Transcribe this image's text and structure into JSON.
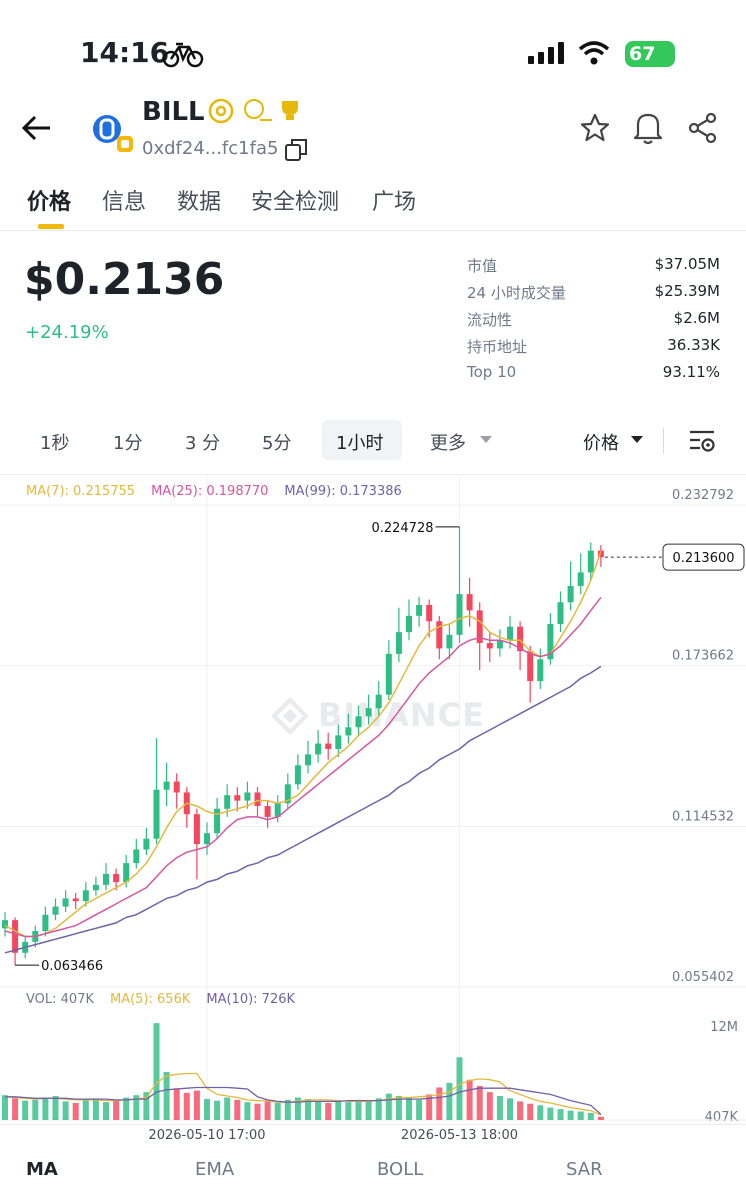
{
  "status_bar": {
    "time": "14:16",
    "battery": "67"
  },
  "header": {
    "symbol": "BILL",
    "address": "0xdf24...fc1fa5"
  },
  "tabs": [
    "价格",
    "信息",
    "数据",
    "安全检测",
    "广场"
  ],
  "price": {
    "value": "$0.2136",
    "change": "+24.19%"
  },
  "stats": [
    {
      "label": "市值",
      "value": "$37.05M"
    },
    {
      "label": "24 小时成交量",
      "value": "$25.39M"
    },
    {
      "label": "流动性",
      "value": "$2.6M"
    },
    {
      "label": "持币地址",
      "value": "36.33K"
    },
    {
      "label": "Top 10",
      "value": "93.11%"
    }
  ],
  "intervals": [
    "1秒",
    "1分",
    "3 分",
    "5分",
    "1小时",
    "更多"
  ],
  "price_menu": "价格",
  "watermark": "BINANCE",
  "indicator_tabs": [
    "MA",
    "EMA",
    "BOLL",
    "SAR"
  ],
  "chart_data": {
    "type": "candlestick",
    "up_color": "#2ebd85",
    "down_color": "#f6465d",
    "categories": [
      null,
      null,
      null,
      null,
      null,
      null,
      null,
      null,
      null,
      null,
      null,
      null,
      null,
      null,
      null,
      null,
      null,
      null,
      null,
      null,
      "2026-05-10 17:00",
      null,
      null,
      null,
      null,
      null,
      null,
      null,
      null,
      null,
      null,
      null,
      null,
      null,
      null,
      null,
      null,
      null,
      null,
      null,
      null,
      null,
      null,
      null,
      null,
      "2026-05-13 18:00",
      null,
      null,
      null,
      null,
      null,
      null,
      null,
      null,
      null,
      null,
      null,
      null,
      null,
      null
    ],
    "open": [
      0.077,
      0.08,
      0.068,
      0.072,
      0.076,
      0.082,
      0.085,
      0.088,
      0.087,
      0.091,
      0.093,
      0.097,
      0.094,
      0.101,
      0.106,
      0.11,
      0.128,
      0.131,
      0.127,
      0.119,
      0.108,
      0.112,
      0.121,
      0.126,
      0.124,
      0.127,
      0.122,
      0.118,
      0.123,
      0.13,
      0.137,
      0.141,
      0.145,
      0.143,
      0.148,
      0.151,
      0.155,
      0.158,
      0.163,
      0.178,
      0.186,
      0.192,
      0.196,
      0.19,
      0.18,
      0.185,
      0.2,
      0.194,
      0.182,
      0.18,
      0.183,
      0.188,
      0.179,
      0.168,
      0.176,
      0.189,
      0.197,
      0.203,
      0.208,
      0.216
    ],
    "high": [
      0.083,
      0.081,
      0.074,
      0.078,
      0.085,
      0.088,
      0.091,
      0.09,
      0.094,
      0.096,
      0.101,
      0.099,
      0.104,
      0.11,
      0.114,
      0.147,
      0.138,
      0.134,
      0.129,
      0.121,
      0.116,
      0.125,
      0.13,
      0.129,
      0.131,
      0.129,
      0.124,
      0.126,
      0.134,
      0.141,
      0.146,
      0.15,
      0.149,
      0.152,
      0.156,
      0.159,
      0.163,
      0.168,
      0.183,
      0.195,
      0.198,
      0.199,
      0.198,
      0.192,
      0.189,
      0.224728,
      0.206,
      0.197,
      0.186,
      0.187,
      0.192,
      0.19,
      0.181,
      0.18,
      0.193,
      0.201,
      0.212,
      0.215,
      0.219,
      0.218
    ],
    "low": [
      0.074,
      0.063466,
      0.066,
      0.07,
      0.074,
      0.08,
      0.083,
      0.084,
      0.085,
      0.089,
      0.091,
      0.091,
      0.092,
      0.099,
      0.104,
      0.108,
      0.122,
      0.121,
      0.114,
      0.095,
      0.104,
      0.11,
      0.118,
      0.12,
      0.121,
      0.118,
      0.114,
      0.116,
      0.121,
      0.128,
      0.134,
      0.138,
      0.139,
      0.14,
      0.145,
      0.148,
      0.152,
      0.155,
      0.161,
      0.175,
      0.183,
      0.188,
      0.184,
      0.176,
      0.176,
      0.182,
      0.188,
      0.172,
      0.175,
      0.177,
      0.18,
      0.172,
      0.16,
      0.165,
      0.174,
      0.186,
      0.194,
      0.2,
      0.205,
      0.21
    ],
    "close": [
      0.08,
      0.068,
      0.072,
      0.076,
      0.082,
      0.085,
      0.088,
      0.087,
      0.091,
      0.093,
      0.097,
      0.094,
      0.101,
      0.106,
      0.11,
      0.128,
      0.131,
      0.127,
      0.119,
      0.108,
      0.112,
      0.121,
      0.126,
      0.124,
      0.127,
      0.122,
      0.118,
      0.123,
      0.13,
      0.137,
      0.141,
      0.145,
      0.143,
      0.148,
      0.151,
      0.155,
      0.158,
      0.163,
      0.178,
      0.186,
      0.192,
      0.196,
      0.19,
      0.18,
      0.185,
      0.2,
      0.194,
      0.182,
      0.18,
      0.183,
      0.188,
      0.179,
      0.168,
      0.176,
      0.189,
      0.197,
      0.203,
      0.208,
      0.216,
      0.2136
    ],
    "high_index": 45,
    "low_index": 1,
    "last_label": "0.213600",
    "series": [
      {
        "name": "MA(7): 0.215755",
        "color": "#e2b93b",
        "values": [
          0.078,
          0.076,
          0.074,
          0.074,
          0.075,
          0.077,
          0.08,
          0.083,
          0.086,
          0.088,
          0.09,
          0.092,
          0.094,
          0.097,
          0.101,
          0.107,
          0.114,
          0.12,
          0.123,
          0.122,
          0.12,
          0.119,
          0.12,
          0.121,
          0.122,
          0.124,
          0.124,
          0.123,
          0.124,
          0.126,
          0.13,
          0.134,
          0.138,
          0.141,
          0.144,
          0.148,
          0.151,
          0.155,
          0.16,
          0.167,
          0.174,
          0.181,
          0.186,
          0.188,
          0.189,
          0.191,
          0.192,
          0.19,
          0.186,
          0.184,
          0.183,
          0.183,
          0.179,
          0.177,
          0.178,
          0.184,
          0.19,
          0.197,
          0.205,
          0.215755
        ]
      },
      {
        "name": "MA(25): 0.198770",
        "color": "#d6569f",
        "values": [
          0.076,
          0.075,
          0.074,
          0.074,
          0.075,
          0.076,
          0.077,
          0.078,
          0.08,
          0.082,
          0.084,
          0.086,
          0.088,
          0.09,
          0.092,
          0.096,
          0.1,
          0.103,
          0.105,
          0.106,
          0.107,
          0.11,
          0.114,
          0.117,
          0.118,
          0.118,
          0.117,
          0.118,
          0.121,
          0.124,
          0.127,
          0.13,
          0.133,
          0.136,
          0.139,
          0.142,
          0.145,
          0.148,
          0.152,
          0.157,
          0.162,
          0.167,
          0.171,
          0.174,
          0.177,
          0.181,
          0.183,
          0.184,
          0.183,
          0.183,
          0.182,
          0.18,
          0.178,
          0.177,
          0.178,
          0.181,
          0.185,
          0.189,
          0.194,
          0.19877
        ]
      },
      {
        "name": "MA(99): 0.173386",
        "color": "#6f62a8",
        "values": [
          0.068,
          0.069,
          0.07,
          0.071,
          0.072,
          0.073,
          0.074,
          0.075,
          0.076,
          0.077,
          0.078,
          0.079,
          0.081,
          0.082,
          0.084,
          0.086,
          0.088,
          0.089,
          0.091,
          0.092,
          0.094,
          0.095,
          0.097,
          0.098,
          0.1,
          0.101,
          0.103,
          0.104,
          0.106,
          0.108,
          0.11,
          0.112,
          0.114,
          0.116,
          0.118,
          0.12,
          0.122,
          0.124,
          0.126,
          0.129,
          0.131,
          0.134,
          0.136,
          0.139,
          0.141,
          0.143,
          0.146,
          0.148,
          0.15,
          0.152,
          0.154,
          0.156,
          0.158,
          0.16,
          0.162,
          0.164,
          0.166,
          0.169,
          0.171,
          0.173386
        ]
      }
    ],
    "ylim": [
      0.055402,
      0.232792
    ],
    "yticks": [
      0.232792,
      0.173662,
      0.114532,
      0.055402
    ],
    "volume": [
      3.2,
      2.8,
      2.5,
      2.6,
      2.9,
      3.1,
      2.4,
      2.2,
      2.6,
      2.8,
      2.3,
      2.5,
      2.9,
      3.2,
      3.6,
      12.5,
      6.2,
      4.1,
      3.5,
      3.8,
      2.7,
      2.5,
      2.9,
      2.6,
      2.3,
      2.1,
      2.4,
      2.2,
      2.6,
      2.9,
      2.7,
      2.4,
      2.2,
      2.5,
      2.3,
      2.6,
      2.4,
      2.8,
      3.4,
      3.1,
      2.9,
      2.6,
      3.3,
      4.2,
      4.8,
      8.1,
      5.2,
      4.4,
      3.6,
      3.1,
      2.8,
      2.4,
      2.1,
      1.9,
      1.6,
      1.4,
      1.2,
      1.1,
      0.9,
      0.407
    ],
    "vol_series": [
      {
        "name": "VOL: 407K",
        "color": "#707a8a",
        "values": null
      },
      {
        "name": "MA(5): 656K",
        "color": "#e2b93b",
        "values": [
          3.0,
          2.9,
          2.8,
          2.7,
          2.8,
          2.8,
          2.7,
          2.6,
          2.6,
          2.6,
          2.5,
          2.5,
          2.6,
          2.7,
          2.9,
          4.8,
          5.7,
          5.9,
          6.0,
          6.0,
          4.1,
          3.3,
          3.1,
          2.9,
          2.6,
          2.5,
          2.5,
          2.3,
          2.3,
          2.4,
          2.6,
          2.6,
          2.6,
          2.5,
          2.4,
          2.4,
          2.4,
          2.5,
          2.7,
          2.9,
          2.9,
          3.0,
          3.1,
          3.3,
          3.6,
          4.6,
          5.1,
          5.3,
          5.2,
          4.9,
          3.8,
          3.3,
          2.8,
          2.4,
          2.2,
          1.9,
          1.6,
          1.4,
          1.2,
          0.656
        ]
      },
      {
        "name": "MA(10): 726K",
        "color": "#6f62a8",
        "values": [
          3.0,
          3.0,
          2.9,
          2.8,
          2.8,
          2.8,
          2.8,
          2.7,
          2.7,
          2.7,
          2.7,
          2.6,
          2.6,
          2.7,
          2.7,
          3.6,
          3.9,
          4.0,
          4.1,
          4.2,
          4.2,
          4.2,
          4.2,
          4.1,
          4.0,
          3.0,
          2.6,
          2.4,
          2.3,
          2.3,
          2.4,
          2.4,
          2.4,
          2.4,
          2.5,
          2.5,
          2.5,
          2.5,
          2.6,
          2.7,
          2.7,
          2.7,
          2.8,
          2.9,
          3.1,
          3.6,
          3.9,
          4.1,
          4.1,
          4.1,
          4.1,
          3.9,
          3.7,
          3.5,
          3.3,
          2.9,
          2.5,
          2.2,
          1.9,
          0.726
        ]
      }
    ],
    "vol_ylim": [
      0,
      14.2
    ],
    "vol_yticks": [
      {
        "value": 12,
        "label": "12M"
      },
      {
        "value": 0.407,
        "label": "407K"
      }
    ],
    "grid": true
  }
}
